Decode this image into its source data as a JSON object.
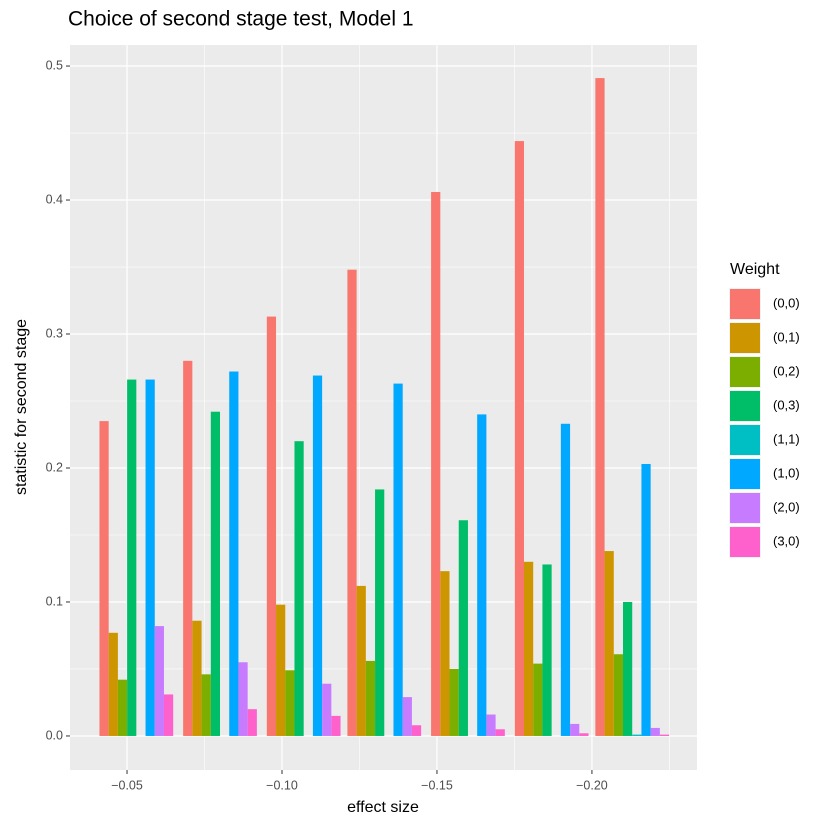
{
  "chart_data": {
    "type": "bar",
    "title": "Choice of second stage test, Model 1",
    "xlabel": "effect size",
    "ylabel": "statistic for second stage",
    "legend_title": "Weight",
    "x": [
      -0.053,
      -0.08,
      -0.107,
      -0.133,
      -0.16,
      -0.187,
      -0.213
    ],
    "series": [
      {
        "name": "(0,0)",
        "color": "#F8766D",
        "values": [
          0.235,
          0.28,
          0.313,
          0.348,
          0.406,
          0.444,
          0.491
        ]
      },
      {
        "name": "(0,1)",
        "color": "#CD9600",
        "values": [
          0.077,
          0.086,
          0.098,
          0.112,
          0.123,
          0.13,
          0.138
        ]
      },
      {
        "name": "(0,2)",
        "color": "#7CAE00",
        "values": [
          0.042,
          0.046,
          0.049,
          0.056,
          0.05,
          0.054,
          0.061
        ]
      },
      {
        "name": "(0,3)",
        "color": "#00BE67",
        "values": [
          0.266,
          0.242,
          0.22,
          0.184,
          0.161,
          0.128,
          0.1
        ]
      },
      {
        "name": "(1,1)",
        "color": "#00BFC4",
        "values": [
          0,
          0,
          0,
          0,
          0,
          0,
          0.001
        ]
      },
      {
        "name": "(1,0)",
        "color": "#00A9FF",
        "values": [
          0.266,
          0.272,
          0.269,
          0.263,
          0.24,
          0.233,
          0.203
        ]
      },
      {
        "name": "(2,0)",
        "color": "#C77CFF",
        "values": [
          0.082,
          0.055,
          0.039,
          0.029,
          0.016,
          0.009,
          0.006
        ]
      },
      {
        "name": "(3,0)",
        "color": "#FF61CC",
        "values": [
          0.031,
          0.02,
          0.015,
          0.008,
          0.005,
          0.002,
          0.001
        ]
      }
    ],
    "xlim": [
      -0.0316,
      -0.2339
    ],
    "xticks": [
      {
        "value": -0.05,
        "label": "−0.05"
      },
      {
        "value": -0.1,
        "label": "−0.10"
      },
      {
        "value": -0.15,
        "label": "−0.15"
      },
      {
        "value": -0.2,
        "label": "−0.20"
      }
    ],
    "ylim": [
      -0.0254,
      0.5157
    ],
    "yticks": [
      {
        "value": 0,
        "label": "0.0"
      },
      0.1,
      0.2,
      0.3,
      0.4,
      0.5
    ],
    "grid": true,
    "legend": "right"
  }
}
